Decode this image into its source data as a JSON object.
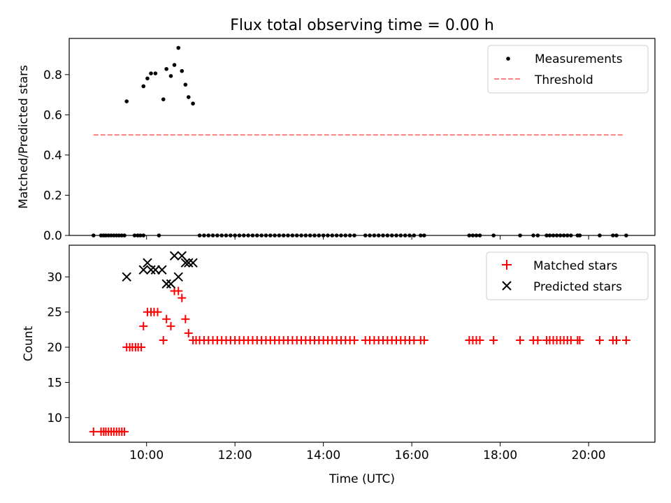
{
  "chart_data": [
    {
      "type": "scatter",
      "title": "Flux total observing time = 0.00 h",
      "xlabel": "",
      "ylabel": "Matched/Predicted stars",
      "xlim": [
        8.25,
        21.5
      ],
      "ylim": [
        0,
        0.98
      ],
      "yticks": [
        0.0,
        0.2,
        0.4,
        0.6,
        0.8
      ],
      "ytick_labels": [
        "0.0",
        "0.2",
        "0.4",
        "0.6",
        "0.8"
      ],
      "xticks": [
        10,
        12,
        14,
        16,
        18,
        20
      ],
      "legend_position": "top-right",
      "legend": [
        "Measurements",
        "Threshold"
      ],
      "series": [
        {
          "name": "Measurements",
          "kind": "points",
          "color": "#000000",
          "points": [
            [
              8.8,
              0
            ],
            [
              8.97,
              0
            ],
            [
              9.03,
              0
            ],
            [
              9.08,
              0
            ],
            [
              9.14,
              0
            ],
            [
              9.2,
              0
            ],
            [
              9.26,
              0
            ],
            [
              9.32,
              0
            ],
            [
              9.38,
              0
            ],
            [
              9.44,
              0
            ],
            [
              9.5,
              0
            ],
            [
              9.55,
              0.667
            ],
            [
              9.73,
              0
            ],
            [
              9.8,
              0
            ],
            [
              9.86,
              0
            ],
            [
              9.93,
              0
            ],
            [
              9.93,
              0.742
            ],
            [
              10.02,
              0.781
            ],
            [
              10.1,
              0.806
            ],
            [
              10.2,
              0.806
            ],
            [
              10.28,
              0
            ],
            [
              10.38,
              0.677
            ],
            [
              10.45,
              0.828
            ],
            [
              10.55,
              0.793
            ],
            [
              10.63,
              0.848
            ],
            [
              10.72,
              0.933
            ],
            [
              10.8,
              0.818
            ],
            [
              10.88,
              0.75
            ],
            [
              10.95,
              0.688
            ],
            [
              11.05,
              0.656
            ],
            [
              11.2,
              0
            ],
            [
              11.3,
              0
            ],
            [
              11.4,
              0
            ],
            [
              11.5,
              0
            ],
            [
              11.6,
              0
            ],
            [
              11.7,
              0
            ],
            [
              11.8,
              0
            ],
            [
              11.9,
              0
            ],
            [
              12.0,
              0
            ],
            [
              12.1,
              0
            ],
            [
              12.2,
              0
            ],
            [
              12.3,
              0
            ],
            [
              12.4,
              0
            ],
            [
              12.5,
              0
            ],
            [
              12.6,
              0
            ],
            [
              12.7,
              0
            ],
            [
              12.8,
              0
            ],
            [
              12.9,
              0
            ],
            [
              13.0,
              0
            ],
            [
              13.1,
              0
            ],
            [
              13.2,
              0
            ],
            [
              13.3,
              0
            ],
            [
              13.4,
              0
            ],
            [
              13.5,
              0
            ],
            [
              13.6,
              0
            ],
            [
              13.7,
              0
            ],
            [
              13.8,
              0
            ],
            [
              13.9,
              0
            ],
            [
              14.0,
              0
            ],
            [
              14.1,
              0
            ],
            [
              14.2,
              0
            ],
            [
              14.3,
              0
            ],
            [
              14.4,
              0
            ],
            [
              14.5,
              0
            ],
            [
              14.6,
              0
            ],
            [
              14.7,
              0
            ],
            [
              14.95,
              0
            ],
            [
              15.05,
              0
            ],
            [
              15.15,
              0
            ],
            [
              15.25,
              0
            ],
            [
              15.35,
              0
            ],
            [
              15.45,
              0
            ],
            [
              15.55,
              0
            ],
            [
              15.65,
              0
            ],
            [
              15.75,
              0
            ],
            [
              15.85,
              0
            ],
            [
              15.95,
              0
            ],
            [
              16.05,
              0
            ],
            [
              16.2,
              0
            ],
            [
              16.28,
              0
            ],
            [
              17.3,
              0
            ],
            [
              17.38,
              0
            ],
            [
              17.46,
              0
            ],
            [
              17.54,
              0
            ],
            [
              17.85,
              0
            ],
            [
              18.45,
              0
            ],
            [
              18.75,
              0
            ],
            [
              18.85,
              0
            ],
            [
              19.05,
              0
            ],
            [
              19.12,
              0
            ],
            [
              19.2,
              0
            ],
            [
              19.28,
              0
            ],
            [
              19.36,
              0
            ],
            [
              19.44,
              0
            ],
            [
              19.52,
              0
            ],
            [
              19.6,
              0
            ],
            [
              19.75,
              0
            ],
            [
              19.8,
              0
            ],
            [
              20.25,
              0
            ],
            [
              20.55,
              0
            ],
            [
              20.63,
              0
            ],
            [
              20.85,
              0
            ]
          ]
        },
        {
          "name": "Threshold",
          "kind": "dashed-line",
          "color": "#ff8080",
          "points": [
            [
              8.8,
              0.5
            ],
            [
              20.8,
              0.5
            ]
          ]
        }
      ]
    },
    {
      "type": "scatter",
      "title": "",
      "xlabel": "Time (UTC)",
      "ylabel": "Count",
      "xlim": [
        8.25,
        21.5
      ],
      "ylim": [
        6.5,
        34.5
      ],
      "yticks": [
        10,
        15,
        20,
        25,
        30
      ],
      "ytick_labels": [
        "10",
        "15",
        "20",
        "25",
        "30"
      ],
      "xticks": [
        10,
        12,
        14,
        16,
        18,
        20
      ],
      "xtick_labels": [
        "10:00",
        "12:00",
        "14:00",
        "16:00",
        "18:00",
        "20:00"
      ],
      "legend_position": "top-right",
      "legend": [
        "Matched stars",
        "Predicted stars"
      ],
      "series": [
        {
          "name": "Matched stars",
          "kind": "plus",
          "color": "#ff0000",
          "points": [
            [
              8.8,
              8
            ],
            [
              8.97,
              8
            ],
            [
              9.03,
              8
            ],
            [
              9.08,
              8
            ],
            [
              9.14,
              8
            ],
            [
              9.2,
              8
            ],
            [
              9.26,
              8
            ],
            [
              9.32,
              8
            ],
            [
              9.38,
              8
            ],
            [
              9.44,
              8
            ],
            [
              9.5,
              8
            ],
            [
              9.55,
              20
            ],
            [
              9.62,
              20
            ],
            [
              9.68,
              20
            ],
            [
              9.75,
              20
            ],
            [
              9.81,
              20
            ],
            [
              9.88,
              20
            ],
            [
              9.93,
              23
            ],
            [
              10.02,
              25
            ],
            [
              10.1,
              25
            ],
            [
              10.17,
              25
            ],
            [
              10.25,
              25
            ],
            [
              10.38,
              21
            ],
            [
              10.45,
              24
            ],
            [
              10.55,
              23
            ],
            [
              10.63,
              28
            ],
            [
              10.72,
              28
            ],
            [
              10.8,
              27
            ],
            [
              10.88,
              24
            ],
            [
              10.95,
              22
            ],
            [
              11.05,
              21
            ],
            [
              11.12,
              21
            ],
            [
              11.2,
              21
            ],
            [
              11.3,
              21
            ],
            [
              11.4,
              21
            ],
            [
              11.5,
              21
            ],
            [
              11.6,
              21
            ],
            [
              11.7,
              21
            ],
            [
              11.8,
              21
            ],
            [
              11.9,
              21
            ],
            [
              12.0,
              21
            ],
            [
              12.1,
              21
            ],
            [
              12.2,
              21
            ],
            [
              12.3,
              21
            ],
            [
              12.4,
              21
            ],
            [
              12.5,
              21
            ],
            [
              12.6,
              21
            ],
            [
              12.7,
              21
            ],
            [
              12.8,
              21
            ],
            [
              12.9,
              21
            ],
            [
              13.0,
              21
            ],
            [
              13.1,
              21
            ],
            [
              13.2,
              21
            ],
            [
              13.3,
              21
            ],
            [
              13.4,
              21
            ],
            [
              13.5,
              21
            ],
            [
              13.6,
              21
            ],
            [
              13.7,
              21
            ],
            [
              13.8,
              21
            ],
            [
              13.9,
              21
            ],
            [
              14.0,
              21
            ],
            [
              14.1,
              21
            ],
            [
              14.2,
              21
            ],
            [
              14.3,
              21
            ],
            [
              14.4,
              21
            ],
            [
              14.5,
              21
            ],
            [
              14.6,
              21
            ],
            [
              14.7,
              21
            ],
            [
              14.95,
              21
            ],
            [
              15.05,
              21
            ],
            [
              15.15,
              21
            ],
            [
              15.25,
              21
            ],
            [
              15.35,
              21
            ],
            [
              15.45,
              21
            ],
            [
              15.55,
              21
            ],
            [
              15.65,
              21
            ],
            [
              15.75,
              21
            ],
            [
              15.85,
              21
            ],
            [
              15.95,
              21
            ],
            [
              16.05,
              21
            ],
            [
              16.2,
              21
            ],
            [
              16.28,
              21
            ],
            [
              17.3,
              21
            ],
            [
              17.38,
              21
            ],
            [
              17.46,
              21
            ],
            [
              17.54,
              21
            ],
            [
              17.85,
              21
            ],
            [
              18.45,
              21
            ],
            [
              18.75,
              21
            ],
            [
              18.85,
              21
            ],
            [
              19.05,
              21
            ],
            [
              19.12,
              21
            ],
            [
              19.2,
              21
            ],
            [
              19.28,
              21
            ],
            [
              19.36,
              21
            ],
            [
              19.44,
              21
            ],
            [
              19.52,
              21
            ],
            [
              19.6,
              21
            ],
            [
              19.75,
              21
            ],
            [
              19.8,
              21
            ],
            [
              20.25,
              21
            ],
            [
              20.55,
              21
            ],
            [
              20.63,
              21
            ],
            [
              20.85,
              21
            ]
          ]
        },
        {
          "name": "Predicted stars",
          "kind": "x",
          "color": "#000000",
          "points": [
            [
              9.55,
              30
            ],
            [
              9.93,
              31
            ],
            [
              10.02,
              32
            ],
            [
              10.1,
              31
            ],
            [
              10.2,
              31
            ],
            [
              10.35,
              31
            ],
            [
              10.45,
              29
            ],
            [
              10.55,
              29
            ],
            [
              10.63,
              33
            ],
            [
              10.72,
              30
            ],
            [
              10.8,
              33
            ],
            [
              10.88,
              32
            ],
            [
              10.95,
              32
            ],
            [
              11.05,
              32
            ]
          ]
        }
      ]
    }
  ]
}
